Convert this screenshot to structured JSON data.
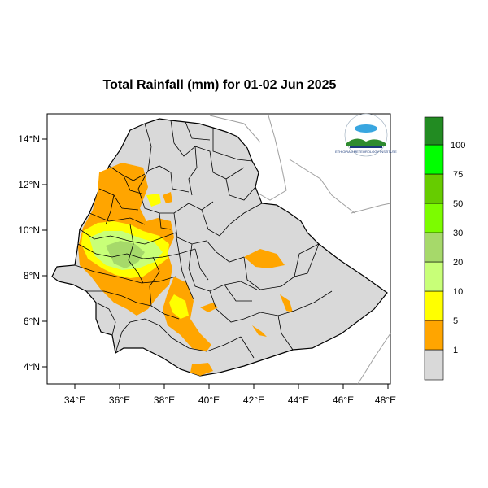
{
  "map": {
    "title": "Total Rainfall (mm) for 01-02 Jun 2025",
    "x_axis": {
      "ticks": [
        "34°E",
        "36°E",
        "38°E",
        "40°E",
        "42°E",
        "44°E",
        "46°E",
        "48°E"
      ],
      "range": [
        "33°E",
        "48°E"
      ]
    },
    "y_axis": {
      "ticks": [
        "14°N",
        "12°N",
        "10°N",
        "8°N",
        "6°N",
        "4°N"
      ],
      "range": [
        "3.3°N",
        "15°N"
      ]
    },
    "region": "Ethiopia",
    "logo": {
      "description_text": "ETHIOPIAN METEOROLOGY INSTITUTE",
      "icon": "meteorology-agency-logo"
    }
  },
  "legend": {
    "bins": [
      {
        "label": "1",
        "color": "#d9d9d9"
      },
      {
        "label": "5",
        "color": "#ffa500"
      },
      {
        "label": "10",
        "color": "#ffff00"
      },
      {
        "label": "20",
        "color": "#c8ff78"
      },
      {
        "label": "30",
        "color": "#a6d96a"
      },
      {
        "label": "50",
        "color": "#7cfc00"
      },
      {
        "label": "75",
        "color": "#66cc00"
      },
      {
        "label": "100",
        "color": "#00ff00"
      },
      {
        "label": "",
        "color": "#228b22"
      }
    ]
  },
  "colors": {
    "country_fill": "#d9d9d9",
    "boundary": "#000000",
    "neighbor_border": "#a0a0a0",
    "low_rain": "#ffa500",
    "mid_rain": "#ffff00",
    "high_rain": "#a6d96a"
  }
}
